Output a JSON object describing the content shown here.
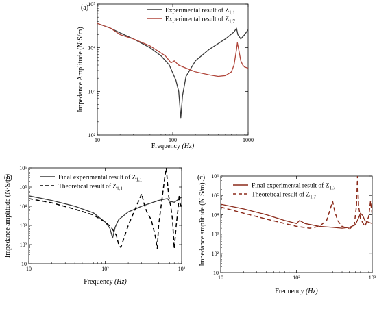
{
  "chart_data": [
    {
      "panel": "(a)",
      "type": "line",
      "xscale": "log",
      "yscale": "log",
      "xlim": [
        10,
        1000
      ],
      "ylim": [
        100,
        100000
      ],
      "xlabel": "Frequency",
      "xlabel_unit": "(Hz)",
      "ylabel": "Impedance Amplitude (N·S/m)",
      "x_ticks": [
        "10",
        "100",
        "1000"
      ],
      "y_ticks": [
        "10²",
        "10³",
        "10⁴",
        "10⁵"
      ],
      "legend_position": "top-right",
      "series": [
        {
          "name": "Experimental result of Z",
          "sub": "1,1",
          "color": "#3a3a3a",
          "dash": "solid",
          "x": [
            10,
            15,
            20,
            30,
            50,
            70,
            90,
            110,
            120,
            128,
            135,
            150,
            200,
            300,
            500,
            650,
            700,
            730,
            800,
            900,
            1000
          ],
          "y": [
            36000,
            28000,
            22000,
            16000,
            10000,
            6500,
            4000,
            1800,
            1000,
            250,
            800,
            2200,
            5000,
            9000,
            16000,
            23000,
            28000,
            20000,
            16000,
            20000,
            26000
          ]
        },
        {
          "name": "Experimental result of Z",
          "sub": "1,7",
          "color": "#b0453a",
          "dash": "solid",
          "x": [
            10,
            15,
            20,
            30,
            50,
            80,
            95,
            105,
            120,
            150,
            200,
            300,
            400,
            500,
            600,
            650,
            700,
            720,
            750,
            800,
            850,
            900,
            1000
          ],
          "y": [
            36000,
            28000,
            20000,
            16000,
            11000,
            6500,
            4500,
            5000,
            4000,
            3400,
            2800,
            2400,
            2200,
            2300,
            2800,
            4000,
            9000,
            13000,
            9000,
            5000,
            4000,
            3600,
            3400
          ]
        }
      ]
    },
    {
      "panel": "(b)",
      "type": "line",
      "xscale": "log",
      "yscale": "log",
      "xlim": [
        10,
        1000
      ],
      "ylim": [
        10,
        1000000
      ],
      "xlabel": "Frequency",
      "xlabel_unit": "(Hz)",
      "ylabel": "Impedance amplitude (N·S/m)",
      "x_ticks": [
        "10",
        "10²",
        "10³"
      ],
      "y_ticks": [
        "10",
        "10²",
        "10³",
        "10⁴",
        "10⁵",
        "10⁶"
      ],
      "legend_position": "top-left",
      "series": [
        {
          "name": "Final experimental result of Z",
          "sub": "1,1",
          "color": "#3a3a3a",
          "dash": "solid",
          "x": [
            10,
            20,
            40,
            70,
            100,
            115,
            125,
            135,
            150,
            200,
            300,
            500,
            650,
            700,
            800,
            900,
            1000
          ],
          "y": [
            35000,
            20000,
            10000,
            4500,
            1500,
            700,
            220,
            800,
            2000,
            5000,
            10000,
            20000,
            25000,
            18000,
            16000,
            22000,
            30000
          ]
        },
        {
          "name": "Theoretical result of Z",
          "sub": "1,1",
          "color": "#000000",
          "dash": "dashed",
          "x": [
            10,
            20,
            40,
            70,
            100,
            120,
            140,
            150,
            160,
            200,
            250,
            300,
            320,
            350,
            400,
            450,
            480,
            500,
            550,
            600,
            630,
            650,
            680,
            720,
            760,
            800,
            850,
            900,
            930,
            950,
            1000
          ],
          "y": [
            25000,
            15000,
            7000,
            3500,
            1500,
            800,
            300,
            100,
            70,
            1000,
            8000,
            45000,
            15000,
            5000,
            2000,
            300,
            60,
            1000,
            20000,
            300000,
            1000000,
            200000,
            30000,
            10000,
            2000,
            60,
            1000,
            8000,
            40000,
            15000,
            8000
          ]
        }
      ]
    },
    {
      "panel": "(c)",
      "type": "line",
      "xscale": "log",
      "yscale": "log",
      "xlim": [
        10,
        1000
      ],
      "ylim": [
        10,
        1000000
      ],
      "xlabel": "Frequency",
      "xlabel_unit": "(Hz)",
      "ylabel": "Impedance amplitude (N·S/m)",
      "x_ticks": [
        "10",
        "10²",
        "10³"
      ],
      "y_ticks": [
        "10",
        "10²",
        "10³",
        "10⁴",
        "10⁵",
        "10⁶"
      ],
      "legend_position": "top-left",
      "series": [
        {
          "name": "Final experimental result of Z",
          "sub": "1,7",
          "color": "#8b2a1a",
          "dash": "solid",
          "x": [
            10,
            20,
            40,
            70,
            100,
            110,
            130,
            200,
            300,
            400,
            500,
            600,
            650,
            700,
            750,
            800,
            900,
            1000
          ],
          "y": [
            35000,
            20000,
            10000,
            5000,
            3500,
            5000,
            3500,
            2500,
            2200,
            2000,
            2200,
            3000,
            6000,
            12000,
            9000,
            5000,
            4000,
            3500
          ]
        },
        {
          "name": "Theoretical result of Z",
          "sub": "1,7",
          "color": "#8b2a1a",
          "dash": "dashed",
          "x": [
            10,
            20,
            40,
            70,
            100,
            150,
            200,
            250,
            280,
            300,
            320,
            350,
            400,
            500,
            580,
            620,
            640,
            660,
            700,
            800,
            900,
            950,
            1000
          ],
          "y": [
            25000,
            12000,
            6000,
            3500,
            2500,
            2000,
            2500,
            5000,
            20000,
            50000,
            15000,
            5000,
            2500,
            1800,
            3000,
            30000,
            1000000,
            30000,
            6000,
            2500,
            8000,
            50000,
            10000
          ]
        }
      ]
    }
  ]
}
